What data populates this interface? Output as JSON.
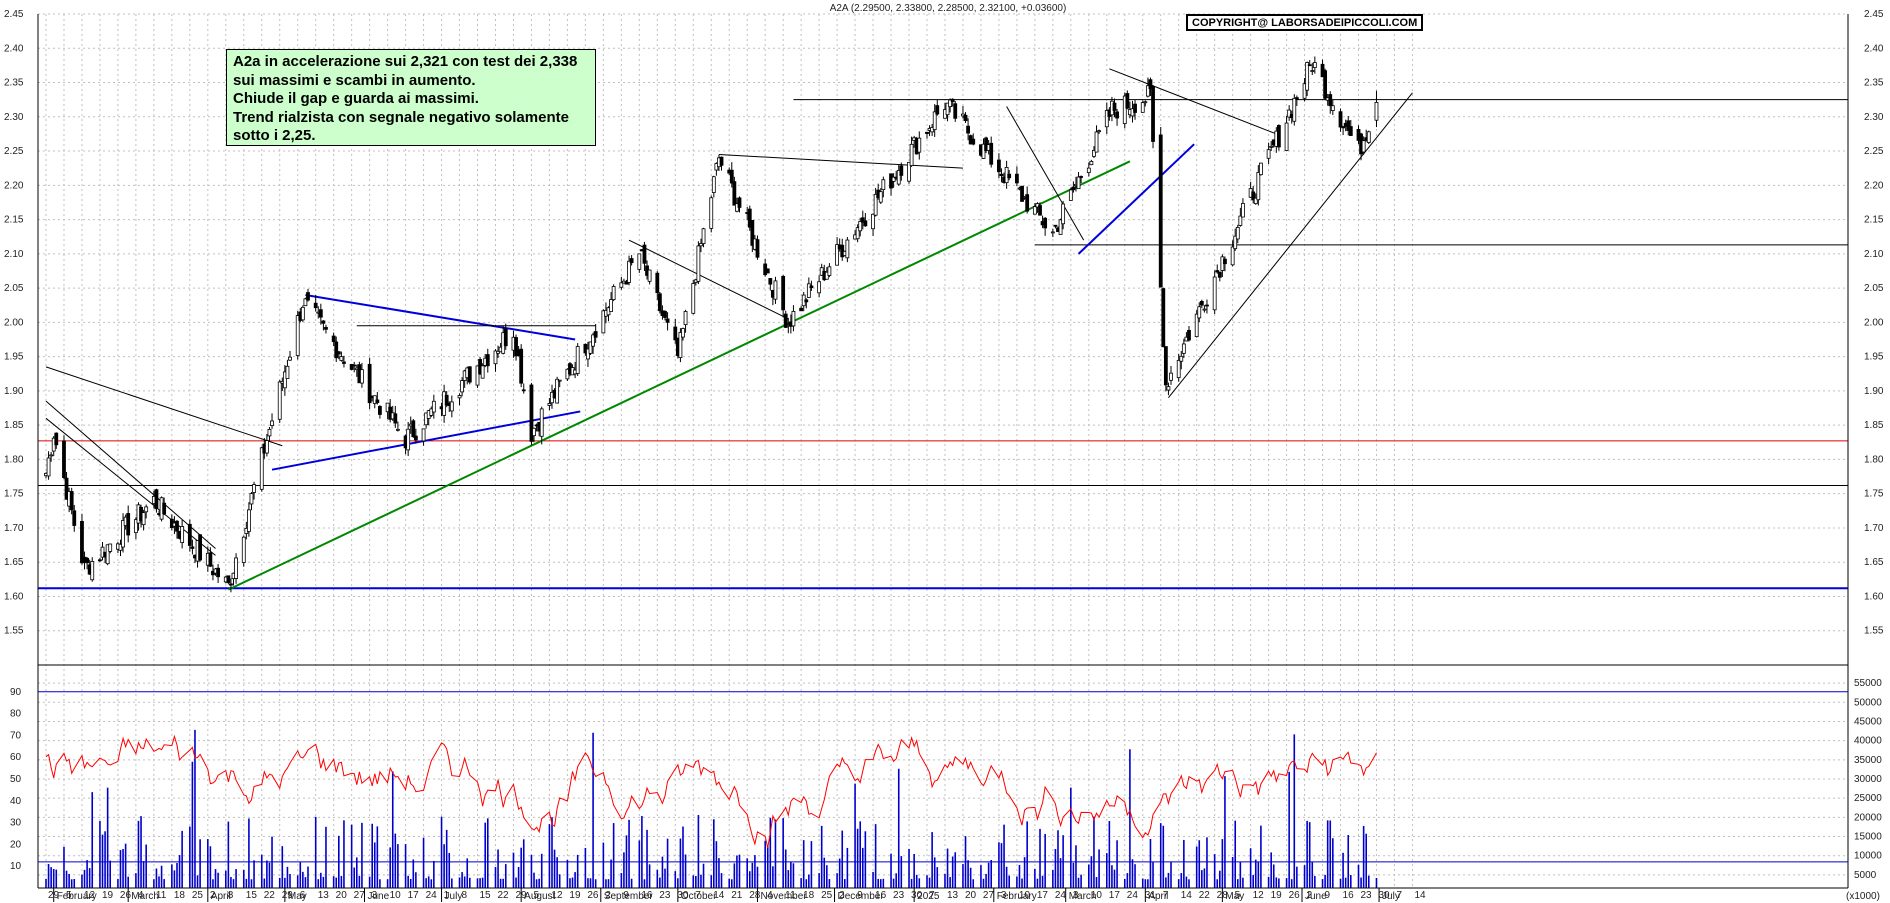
{
  "header": {
    "quote": "A2A (2.29500, 2.33800, 2.28500, 2.32100, +0.03600)",
    "copyright": "COPYRIGHT@ LABORSADEIPICCOLI.COM"
  },
  "annotation": {
    "lines": [
      "A2a in accelerazione sui 2,321 con test dei 2,338",
      "sui massimi e scambi in aumento.",
      "Chiude il gap e guarda ai massimi.",
      "Trend rialzista con segnale negativo solamente",
      "sotto i 2,25."
    ]
  },
  "colors": {
    "candle": "#000000",
    "volume": "#0000cc",
    "oscillator": "#ff0000",
    "trend_green": "#008800",
    "trend_blue": "#0000dd",
    "support_red": "#dd0000",
    "grid": "#c0c0c0"
  },
  "chart_data": [
    {
      "type": "candlestick",
      "title": "A2A",
      "ylim": [
        1.5,
        2.45
      ],
      "yticks": [
        "1.55",
        "1.60",
        "1.65",
        "1.70",
        "1.75",
        "1.80",
        "1.85",
        "1.90",
        "1.95",
        "2.00",
        "2.05",
        "2.10",
        "2.15",
        "2.20",
        "2.25",
        "2.30",
        "2.35",
        "2.40",
        "2.45"
      ],
      "last": {
        "open": 2.295,
        "high": 2.338,
        "low": 2.285,
        "close": 2.321,
        "change": 0.036
      },
      "key_prices": [
        {
          "date": "2024-01-29",
          "close": 1.78
        },
        {
          "date": "2024-02-01",
          "close": 1.84
        },
        {
          "date": "2024-02-13",
          "close": 1.64
        },
        {
          "date": "2024-03-11",
          "close": 1.74
        },
        {
          "date": "2024-04-09",
          "close": 1.615
        },
        {
          "date": "2024-05-08",
          "close": 2.03
        },
        {
          "date": "2024-06-17",
          "close": 1.83
        },
        {
          "date": "2024-07-29",
          "close": 1.99
        },
        {
          "date": "2024-08-05",
          "close": 1.84
        },
        {
          "date": "2024-09-16",
          "close": 2.1
        },
        {
          "date": "2024-10-01",
          "close": 1.95
        },
        {
          "date": "2024-10-17",
          "close": 2.24
        },
        {
          "date": "2024-11-13",
          "close": 2.0
        },
        {
          "date": "2025-01-13",
          "close": 2.32
        },
        {
          "date": "2025-02-24",
          "close": 2.13
        },
        {
          "date": "2025-03-19",
          "close": 2.31
        },
        {
          "date": "2025-04-03",
          "close": 2.33
        },
        {
          "date": "2025-04-09",
          "close": 1.91
        },
        {
          "date": "2025-06-05",
          "close": 2.38
        },
        {
          "date": "2025-06-23",
          "close": 2.25
        },
        {
          "date": "2025-06-30",
          "close": 2.321
        }
      ],
      "horizontal_levels": [
        {
          "value": 1.612,
          "color": "blue"
        },
        {
          "value": 1.762,
          "color": "black"
        },
        {
          "value": 1.827,
          "color": "red"
        },
        {
          "value": 2.113,
          "color": "black"
        },
        {
          "value": 2.325,
          "color": "black"
        }
      ]
    },
    {
      "type": "bar",
      "name": "volume",
      "yticks_left": [
        "10",
        "20",
        "30",
        "40",
        "50",
        "60",
        "70",
        "80",
        "90"
      ],
      "yticks_right": [
        "5000",
        "10000",
        "15000",
        "20000",
        "25000",
        "30000",
        "35000",
        "40000",
        "45000",
        "50000",
        "55000"
      ],
      "right_unit": "(x1000)"
    },
    {
      "type": "line",
      "name": "oscillator",
      "ylim": [
        0,
        100
      ]
    }
  ],
  "xaxis": {
    "days": [
      "29",
      "5",
      "12",
      "19",
      "26",
      "4",
      "11",
      "18",
      "25",
      "2",
      "8",
      "15",
      "22",
      "29",
      "6",
      "13",
      "20",
      "27",
      "3",
      "10",
      "17",
      "24",
      "1",
      "8",
      "15",
      "22",
      "29",
      "5",
      "12",
      "19",
      "26",
      "2",
      "9",
      "16",
      "23",
      "30",
      "7",
      "14",
      "21",
      "28",
      "4",
      "11",
      "18",
      "25",
      "2",
      "9",
      "16",
      "23",
      "30",
      "7",
      "13",
      "20",
      "27",
      "3",
      "10",
      "17",
      "24",
      "3",
      "10",
      "17",
      "24",
      "31",
      "7",
      "14",
      "22",
      "28",
      "5",
      "12",
      "19",
      "26",
      "2",
      "9",
      "16",
      "23",
      "30",
      "7",
      "14"
    ],
    "months": [
      "February",
      "March",
      "April",
      "May",
      "June",
      "July",
      "August",
      "September",
      "October",
      "November",
      "December",
      "2025",
      "February",
      "March",
      "April",
      "May",
      "June",
      "July"
    ]
  }
}
